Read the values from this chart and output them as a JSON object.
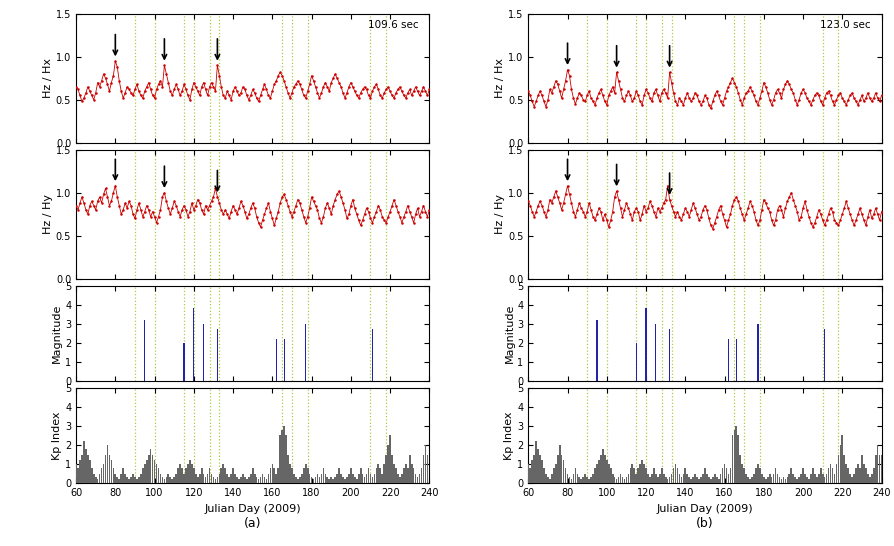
{
  "panel_a_label": "109.6 sec",
  "panel_b_label": "123.0 sec",
  "xlabel": "Julian Day (2009)",
  "ylabel_hx": "Hz / Hx",
  "ylabel_hy": "Hz / Hy",
  "ylabel_mag": "Magnitude",
  "ylabel_kp": "Kp Index",
  "caption_a": "(a)",
  "caption_b": "(b)",
  "xlim": [
    60,
    240
  ],
  "ylim_ratio": [
    0.0,
    1.5
  ],
  "ylim_mag": [
    0,
    5
  ],
  "ylim_kp": [
    0,
    5
  ],
  "xticks": [
    60,
    80,
    100,
    120,
    140,
    160,
    180,
    200,
    220,
    240
  ],
  "yticks_ratio": [
    0.0,
    0.5,
    1.0,
    1.5
  ],
  "yticks_mag": [
    0,
    1,
    2,
    3,
    4,
    5
  ],
  "yticks_kp": [
    0,
    1,
    2,
    3,
    4,
    5
  ],
  "green_vlines": [
    90,
    100,
    115,
    120,
    128,
    133,
    165,
    170,
    178,
    210,
    218
  ],
  "arrows_a_days": [
    80,
    105,
    132
  ],
  "arrows_b_days": [
    80,
    105,
    132
  ],
  "red_color": "#cc0000",
  "blue_color": "#2222aa",
  "gray_color": "#666666",
  "green_vline_color": "#aacc44",
  "eq_days_a": [
    95,
    115,
    120,
    125,
    132,
    162,
    166,
    177,
    211
  ],
  "eq_mags_a": [
    3.2,
    2.0,
    3.8,
    3.0,
    2.7,
    2.2,
    2.2,
    3.0,
    2.7
  ],
  "eq_days_b": [
    95,
    115,
    120,
    125,
    132,
    162,
    166,
    177,
    211
  ],
  "eq_mags_b": [
    3.2,
    2.0,
    3.8,
    3.0,
    2.7,
    2.2,
    2.2,
    3.0,
    2.7
  ],
  "hx_a_vals": [
    0.65,
    0.62,
    0.55,
    0.48,
    0.52,
    0.58,
    0.65,
    0.6,
    0.55,
    0.5,
    0.58,
    0.7,
    0.65,
    0.72,
    0.8,
    0.75,
    0.68,
    0.6,
    0.7,
    0.78,
    0.95,
    0.88,
    0.72,
    0.6,
    0.52,
    0.58,
    0.65,
    0.62,
    0.58,
    0.55,
    0.62,
    0.68,
    0.6,
    0.55,
    0.52,
    0.6,
    0.65,
    0.7,
    0.62,
    0.55,
    0.52,
    0.62,
    0.68,
    0.72,
    0.65,
    0.9,
    0.8,
    0.7,
    0.6,
    0.55,
    0.62,
    0.68,
    0.62,
    0.55,
    0.6,
    0.68,
    0.62,
    0.55,
    0.5,
    0.62,
    0.7,
    0.65,
    0.6,
    0.55,
    0.65,
    0.7,
    0.62,
    0.55,
    0.65,
    0.7,
    0.65,
    0.6,
    0.9,
    0.78,
    0.65,
    0.55,
    0.52,
    0.6,
    0.55,
    0.5,
    0.6,
    0.65,
    0.6,
    0.55,
    0.58,
    0.65,
    0.62,
    0.55,
    0.5,
    0.55,
    0.62,
    0.58,
    0.52,
    0.48,
    0.55,
    0.62,
    0.68,
    0.62,
    0.55,
    0.52,
    0.6,
    0.68,
    0.72,
    0.78,
    0.82,
    0.78,
    0.72,
    0.65,
    0.58,
    0.52,
    0.58,
    0.65,
    0.68,
    0.72,
    0.68,
    0.62,
    0.55,
    0.52,
    0.6,
    0.68,
    0.78,
    0.72,
    0.65,
    0.58,
    0.52,
    0.58,
    0.65,
    0.7,
    0.65,
    0.6,
    0.7,
    0.75,
    0.8,
    0.75,
    0.7,
    0.65,
    0.58,
    0.52,
    0.58,
    0.65,
    0.7,
    0.65,
    0.6,
    0.55,
    0.52,
    0.58,
    0.62,
    0.65,
    0.62,
    0.55,
    0.52,
    0.6,
    0.65,
    0.68,
    0.62,
    0.55,
    0.52,
    0.58,
    0.62,
    0.65,
    0.6,
    0.55,
    0.52,
    0.58,
    0.62,
    0.65,
    0.6,
    0.55,
    0.52,
    0.58,
    0.62,
    0.55,
    0.6,
    0.65,
    0.6,
    0.55,
    0.6,
    0.65,
    0.6,
    0.55,
    0.62
  ],
  "hy_a_vals": [
    0.85,
    0.8,
    0.88,
    0.95,
    0.88,
    0.8,
    0.75,
    0.85,
    0.9,
    0.85,
    0.8,
    0.9,
    0.95,
    0.88,
    0.98,
    1.05,
    0.95,
    0.85,
    0.9,
    1.0,
    1.08,
    0.95,
    0.85,
    0.75,
    0.8,
    0.88,
    0.82,
    0.9,
    0.85,
    0.75,
    0.7,
    0.8,
    0.88,
    0.8,
    0.72,
    0.78,
    0.85,
    0.8,
    0.72,
    0.78,
    0.72,
    0.65,
    0.72,
    0.8,
    0.95,
    1.0,
    0.9,
    0.82,
    0.75,
    0.82,
    0.9,
    0.85,
    0.78,
    0.72,
    0.8,
    0.85,
    0.8,
    0.72,
    0.78,
    0.88,
    0.8,
    0.85,
    0.92,
    0.88,
    0.8,
    0.75,
    0.85,
    0.8,
    0.85,
    0.9,
    0.95,
    1.05,
    0.95,
    0.88,
    0.8,
    0.75,
    0.8,
    0.75,
    0.7,
    0.78,
    0.85,
    0.8,
    0.75,
    0.82,
    0.9,
    0.85,
    0.78,
    0.7,
    0.75,
    0.82,
    0.88,
    0.82,
    0.72,
    0.65,
    0.6,
    0.68,
    0.75,
    0.82,
    0.88,
    0.78,
    0.7,
    0.62,
    0.7,
    0.78,
    0.88,
    0.95,
    0.98,
    0.92,
    0.85,
    0.78,
    0.72,
    0.78,
    0.85,
    0.92,
    0.88,
    0.8,
    0.72,
    0.65,
    0.72,
    0.82,
    0.95,
    0.9,
    0.85,
    0.8,
    0.7,
    0.65,
    0.72,
    0.82,
    0.88,
    0.82,
    0.75,
    0.85,
    0.92,
    0.98,
    1.02,
    0.95,
    0.88,
    0.8,
    0.7,
    0.75,
    0.85,
    0.92,
    0.82,
    0.75,
    0.68,
    0.62,
    0.68,
    0.75,
    0.82,
    0.78,
    0.7,
    0.65,
    0.72,
    0.78,
    0.85,
    0.8,
    0.72,
    0.68,
    0.65,
    0.72,
    0.78,
    0.85,
    0.92,
    0.85,
    0.78,
    0.72,
    0.65,
    0.72,
    0.78,
    0.85,
    0.78,
    0.72,
    0.65,
    0.75,
    0.82,
    0.72,
    0.78,
    0.85,
    0.78,
    0.72,
    0.8
  ],
  "hx_b_vals": [
    0.6,
    0.55,
    0.48,
    0.42,
    0.48,
    0.55,
    0.6,
    0.55,
    0.48,
    0.42,
    0.5,
    0.62,
    0.58,
    0.65,
    0.72,
    0.68,
    0.6,
    0.52,
    0.62,
    0.72,
    0.85,
    0.78,
    0.62,
    0.52,
    0.45,
    0.52,
    0.58,
    0.55,
    0.5,
    0.48,
    0.55,
    0.6,
    0.52,
    0.48,
    0.44,
    0.52,
    0.58,
    0.62,
    0.55,
    0.48,
    0.44,
    0.55,
    0.6,
    0.65,
    0.58,
    0.82,
    0.72,
    0.62,
    0.52,
    0.48,
    0.55,
    0.6,
    0.55,
    0.48,
    0.52,
    0.6,
    0.55,
    0.48,
    0.44,
    0.55,
    0.62,
    0.58,
    0.52,
    0.48,
    0.58,
    0.62,
    0.55,
    0.48,
    0.58,
    0.62,
    0.58,
    0.52,
    0.82,
    0.7,
    0.58,
    0.48,
    0.44,
    0.52,
    0.48,
    0.44,
    0.52,
    0.58,
    0.52,
    0.48,
    0.52,
    0.58,
    0.55,
    0.48,
    0.44,
    0.48,
    0.55,
    0.52,
    0.44,
    0.4,
    0.48,
    0.55,
    0.6,
    0.55,
    0.48,
    0.44,
    0.52,
    0.6,
    0.65,
    0.7,
    0.75,
    0.7,
    0.65,
    0.58,
    0.5,
    0.44,
    0.52,
    0.58,
    0.6,
    0.65,
    0.6,
    0.55,
    0.48,
    0.44,
    0.52,
    0.6,
    0.7,
    0.65,
    0.58,
    0.5,
    0.44,
    0.5,
    0.58,
    0.62,
    0.58,
    0.52,
    0.62,
    0.68,
    0.72,
    0.68,
    0.62,
    0.58,
    0.5,
    0.44,
    0.5,
    0.58,
    0.62,
    0.58,
    0.52,
    0.48,
    0.44,
    0.5,
    0.55,
    0.58,
    0.55,
    0.48,
    0.44,
    0.52,
    0.58,
    0.6,
    0.55,
    0.48,
    0.44,
    0.5,
    0.55,
    0.58,
    0.52,
    0.48,
    0.44,
    0.5,
    0.55,
    0.58,
    0.52,
    0.48,
    0.44,
    0.5,
    0.55,
    0.48,
    0.52,
    0.58,
    0.52,
    0.48,
    0.52,
    0.58,
    0.52,
    0.48,
    0.55
  ],
  "hy_b_vals": [
    0.9,
    0.85,
    0.78,
    0.72,
    0.78,
    0.85,
    0.9,
    0.85,
    0.78,
    0.72,
    0.8,
    0.92,
    0.88,
    0.95,
    1.02,
    0.95,
    0.88,
    0.8,
    0.88,
    0.98,
    1.08,
    0.98,
    0.88,
    0.78,
    0.72,
    0.8,
    0.88,
    0.82,
    0.78,
    0.72,
    0.78,
    0.88,
    0.8,
    0.72,
    0.68,
    0.75,
    0.82,
    0.78,
    0.68,
    0.75,
    0.68,
    0.6,
    0.68,
    0.78,
    0.95,
    1.02,
    0.92,
    0.82,
    0.72,
    0.8,
    0.88,
    0.82,
    0.75,
    0.68,
    0.78,
    0.82,
    0.78,
    0.68,
    0.75,
    0.85,
    0.78,
    0.82,
    0.9,
    0.85,
    0.78,
    0.72,
    0.82,
    0.78,
    0.82,
    0.88,
    0.92,
    1.08,
    0.92,
    0.85,
    0.78,
    0.72,
    0.78,
    0.72,
    0.68,
    0.75,
    0.82,
    0.78,
    0.72,
    0.8,
    0.88,
    0.82,
    0.75,
    0.68,
    0.72,
    0.8,
    0.85,
    0.8,
    0.7,
    0.62,
    0.58,
    0.65,
    0.72,
    0.8,
    0.85,
    0.75,
    0.68,
    0.6,
    0.68,
    0.75,
    0.85,
    0.92,
    0.95,
    0.9,
    0.82,
    0.75,
    0.68,
    0.75,
    0.82,
    0.9,
    0.85,
    0.78,
    0.68,
    0.62,
    0.68,
    0.8,
    0.92,
    0.88,
    0.82,
    0.78,
    0.68,
    0.62,
    0.68,
    0.8,
    0.85,
    0.8,
    0.72,
    0.82,
    0.9,
    0.95,
    1.0,
    0.92,
    0.85,
    0.78,
    0.68,
    0.72,
    0.82,
    0.9,
    0.8,
    0.72,
    0.65,
    0.6,
    0.65,
    0.72,
    0.8,
    0.75,
    0.68,
    0.62,
    0.68,
    0.75,
    0.82,
    0.78,
    0.68,
    0.65,
    0.62,
    0.68,
    0.75,
    0.82,
    0.9,
    0.82,
    0.75,
    0.68,
    0.62,
    0.68,
    0.75,
    0.82,
    0.75,
    0.68,
    0.62,
    0.72,
    0.8,
    0.7,
    0.75,
    0.82,
    0.75,
    0.68,
    0.78
  ],
  "kp_vals": [
    1.0,
    0.8,
    1.2,
    1.5,
    2.2,
    1.8,
    1.5,
    1.2,
    0.8,
    0.5,
    0.3,
    0.2,
    0.5,
    0.8,
    1.0,
    1.5,
    2.0,
    1.5,
    1.2,
    0.8,
    0.5,
    0.3,
    0.2,
    0.5,
    0.8,
    0.5,
    0.3,
    0.2,
    0.3,
    0.5,
    0.3,
    0.2,
    0.3,
    0.5,
    0.8,
    1.0,
    1.2,
    1.5,
    1.8,
    1.5,
    1.2,
    1.0,
    0.8,
    0.5,
    0.3,
    0.2,
    0.3,
    0.5,
    0.3,
    0.2,
    0.3,
    0.5,
    0.8,
    1.0,
    0.8,
    0.5,
    0.8,
    1.0,
    1.2,
    1.0,
    0.8,
    0.5,
    0.3,
    0.5,
    0.8,
    0.5,
    0.3,
    0.5,
    0.8,
    0.5,
    0.3,
    0.2,
    0.3,
    0.5,
    0.8,
    1.0,
    0.8,
    0.5,
    0.3,
    0.5,
    0.8,
    0.5,
    0.3,
    0.2,
    0.3,
    0.5,
    0.3,
    0.2,
    0.3,
    0.5,
    0.8,
    0.5,
    0.3,
    0.2,
    0.3,
    0.5,
    0.3,
    0.2,
    0.5,
    0.8,
    1.0,
    0.8,
    0.5,
    0.8,
    2.5,
    2.8,
    3.0,
    2.5,
    1.5,
    1.0,
    0.8,
    0.5,
    0.3,
    0.2,
    0.3,
    0.5,
    0.8,
    1.0,
    0.8,
    0.5,
    0.3,
    0.2,
    0.3,
    0.5,
    0.3,
    0.5,
    0.8,
    0.5,
    0.3,
    0.2,
    0.3,
    0.2,
    0.3,
    0.5,
    0.8,
    0.5,
    0.3,
    0.2,
    0.3,
    0.5,
    0.8,
    0.5,
    0.3,
    0.2,
    0.5,
    0.8,
    0.5,
    0.3,
    0.5,
    0.8,
    0.5,
    0.3,
    0.5,
    0.8,
    1.0,
    0.8,
    0.5,
    1.0,
    1.5,
    2.0,
    2.5,
    1.5,
    1.0,
    0.8,
    0.5,
    0.3,
    0.5,
    0.8,
    1.0,
    0.8,
    1.5,
    1.0,
    0.8,
    0.5,
    0.3,
    0.5,
    0.8,
    1.5,
    2.0,
    1.5
  ]
}
